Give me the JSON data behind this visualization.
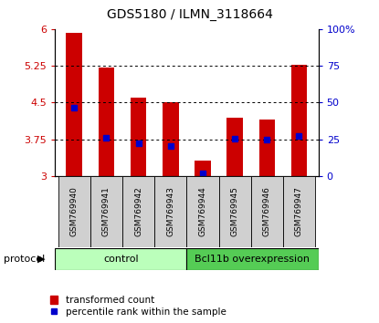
{
  "title": "GDS5180 / ILMN_3118664",
  "categories": [
    "GSM769940",
    "GSM769941",
    "GSM769942",
    "GSM769943",
    "GSM769944",
    "GSM769945",
    "GSM769946",
    "GSM769947"
  ],
  "bar_values": [
    5.93,
    5.22,
    4.6,
    4.5,
    3.32,
    4.2,
    4.15,
    5.27
  ],
  "blue_values": [
    4.4,
    3.79,
    3.66,
    3.62,
    3.05,
    3.76,
    3.74,
    3.81
  ],
  "ylim_left": [
    3.0,
    6.0
  ],
  "ylim_right": [
    0,
    100
  ],
  "yticks_left": [
    3.0,
    3.75,
    4.5,
    5.25,
    6.0
  ],
  "ytick_labels_left": [
    "3",
    "3.75",
    "4.5",
    "5.25",
    "6"
  ],
  "yticks_right": [
    0,
    25,
    50,
    75,
    100
  ],
  "ytick_labels_right": [
    "0",
    "25",
    "50",
    "75",
    "100%"
  ],
  "grid_lines": [
    3.75,
    4.5,
    5.25
  ],
  "bar_color": "#cc0000",
  "blue_color": "#0000cc",
  "bar_baseline": 3.0,
  "group1_label": "control",
  "group2_label": "Bcl11b overexpression",
  "group1_color": "#bbffbb",
  "group2_color": "#55cc55",
  "protocol_label": "protocol",
  "legend_red_label": "transformed count",
  "legend_blue_label": "percentile rank within the sample",
  "title_fontsize": 10,
  "tick_label_color_left": "#cc0000",
  "tick_label_color_right": "#0000cc",
  "bar_width": 0.5,
  "xlabel_cell_color": "#d0d0d0",
  "bg_color": "#ffffff",
  "blue_marker_size": 5
}
